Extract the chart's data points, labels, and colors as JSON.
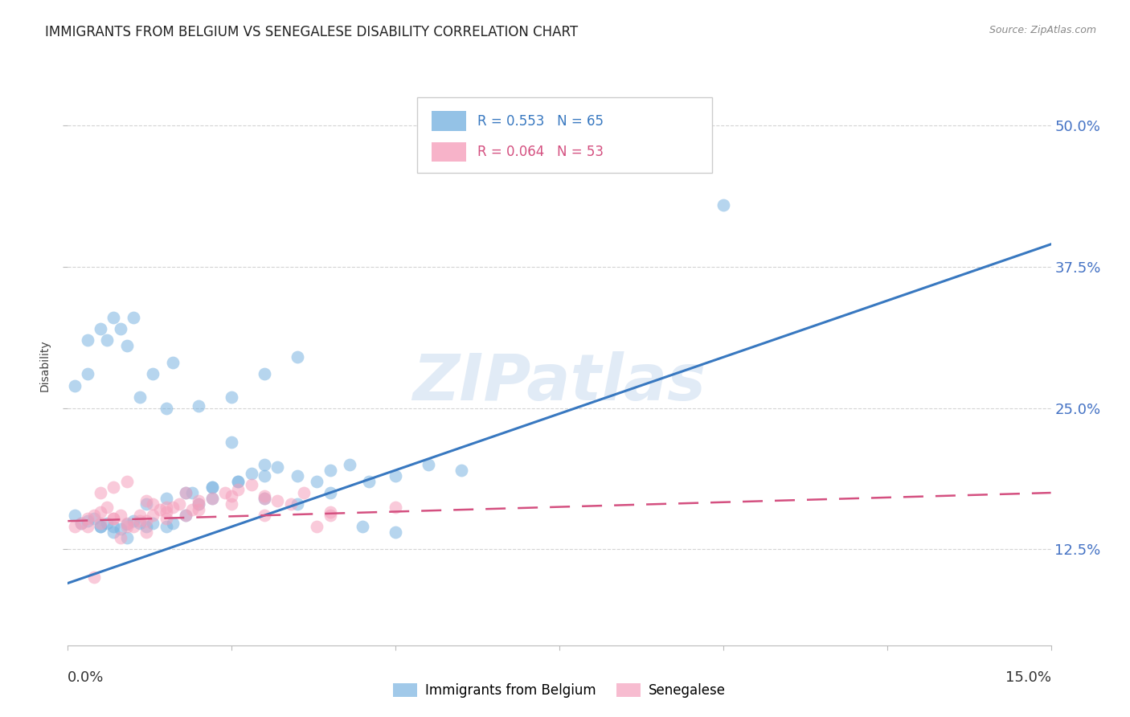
{
  "title": "IMMIGRANTS FROM BELGIUM VS SENEGALESE DISABILITY CORRELATION CHART",
  "source": "Source: ZipAtlas.com",
  "ylabel": "Disability",
  "ytick_values": [
    0.125,
    0.25,
    0.375,
    0.5
  ],
  "ytick_labels": [
    "12.5%",
    "25.0%",
    "37.5%",
    "50.0%"
  ],
  "xlim": [
    0.0,
    0.15
  ],
  "ylim": [
    0.04,
    0.535
  ],
  "legend_bottom": [
    "Immigrants from Belgium",
    "Senegalese"
  ],
  "watermark": "ZIPatlas",
  "blue_scatter_x": [
    0.001,
    0.002,
    0.003,
    0.004,
    0.005,
    0.006,
    0.007,
    0.008,
    0.009,
    0.01,
    0.011,
    0.012,
    0.013,
    0.015,
    0.016,
    0.018,
    0.02,
    0.022,
    0.025,
    0.028,
    0.03,
    0.032,
    0.035,
    0.038,
    0.04,
    0.043,
    0.046,
    0.05,
    0.055,
    0.06,
    0.003,
    0.005,
    0.007,
    0.009,
    0.011,
    0.013,
    0.016,
    0.019,
    0.022,
    0.026,
    0.03,
    0.001,
    0.003,
    0.005,
    0.007,
    0.009,
    0.012,
    0.015,
    0.018,
    0.022,
    0.026,
    0.03,
    0.035,
    0.04,
    0.045,
    0.05,
    0.006,
    0.008,
    0.01,
    0.015,
    0.02,
    0.025,
    0.03,
    0.035,
    0.1
  ],
  "blue_scatter_y": [
    0.155,
    0.148,
    0.15,
    0.152,
    0.145,
    0.148,
    0.145,
    0.143,
    0.147,
    0.15,
    0.148,
    0.145,
    0.148,
    0.145,
    0.148,
    0.155,
    0.165,
    0.17,
    0.22,
    0.192,
    0.2,
    0.198,
    0.19,
    0.185,
    0.195,
    0.2,
    0.185,
    0.19,
    0.2,
    0.195,
    0.31,
    0.32,
    0.33,
    0.305,
    0.26,
    0.28,
    0.29,
    0.175,
    0.18,
    0.185,
    0.19,
    0.27,
    0.28,
    0.145,
    0.14,
    0.135,
    0.165,
    0.17,
    0.175,
    0.18,
    0.185,
    0.17,
    0.165,
    0.175,
    0.145,
    0.14,
    0.31,
    0.32,
    0.33,
    0.25,
    0.252,
    0.26,
    0.28,
    0.295,
    0.43
  ],
  "pink_scatter_x": [
    0.001,
    0.002,
    0.003,
    0.004,
    0.005,
    0.006,
    0.007,
    0.008,
    0.009,
    0.01,
    0.011,
    0.012,
    0.013,
    0.014,
    0.015,
    0.016,
    0.017,
    0.018,
    0.019,
    0.02,
    0.022,
    0.024,
    0.026,
    0.028,
    0.03,
    0.032,
    0.034,
    0.036,
    0.038,
    0.04,
    0.003,
    0.005,
    0.007,
    0.009,
    0.011,
    0.013,
    0.015,
    0.02,
    0.025,
    0.03,
    0.005,
    0.007,
    0.009,
    0.012,
    0.015,
    0.02,
    0.025,
    0.03,
    0.004,
    0.008,
    0.012,
    0.018,
    0.05,
    0.04
  ],
  "pink_scatter_y": [
    0.145,
    0.148,
    0.152,
    0.155,
    0.158,
    0.162,
    0.152,
    0.155,
    0.148,
    0.145,
    0.155,
    0.15,
    0.165,
    0.16,
    0.158,
    0.162,
    0.165,
    0.155,
    0.16,
    0.165,
    0.17,
    0.175,
    0.178,
    0.182,
    0.172,
    0.168,
    0.165,
    0.175,
    0.145,
    0.155,
    0.145,
    0.148,
    0.152,
    0.145,
    0.15,
    0.155,
    0.152,
    0.16,
    0.165,
    0.17,
    0.175,
    0.18,
    0.185,
    0.168,
    0.162,
    0.168,
    0.172,
    0.155,
    0.1,
    0.135,
    0.14,
    0.175,
    0.162,
    0.158
  ],
  "blue_line_x": [
    0.0,
    0.15
  ],
  "blue_line_y": [
    0.095,
    0.395
  ],
  "pink_line_x": [
    0.0,
    0.15
  ],
  "pink_line_y": [
    0.15,
    0.175
  ],
  "blue_color": "#7ab3e0",
  "pink_color": "#f5a0bc",
  "blue_line_color": "#3878c0",
  "pink_line_color": "#d45080",
  "grid_color": "#d0d0d0",
  "background_color": "#ffffff",
  "right_tick_color": "#4472c4",
  "title_fontsize": 12,
  "ylabel_fontsize": 10
}
